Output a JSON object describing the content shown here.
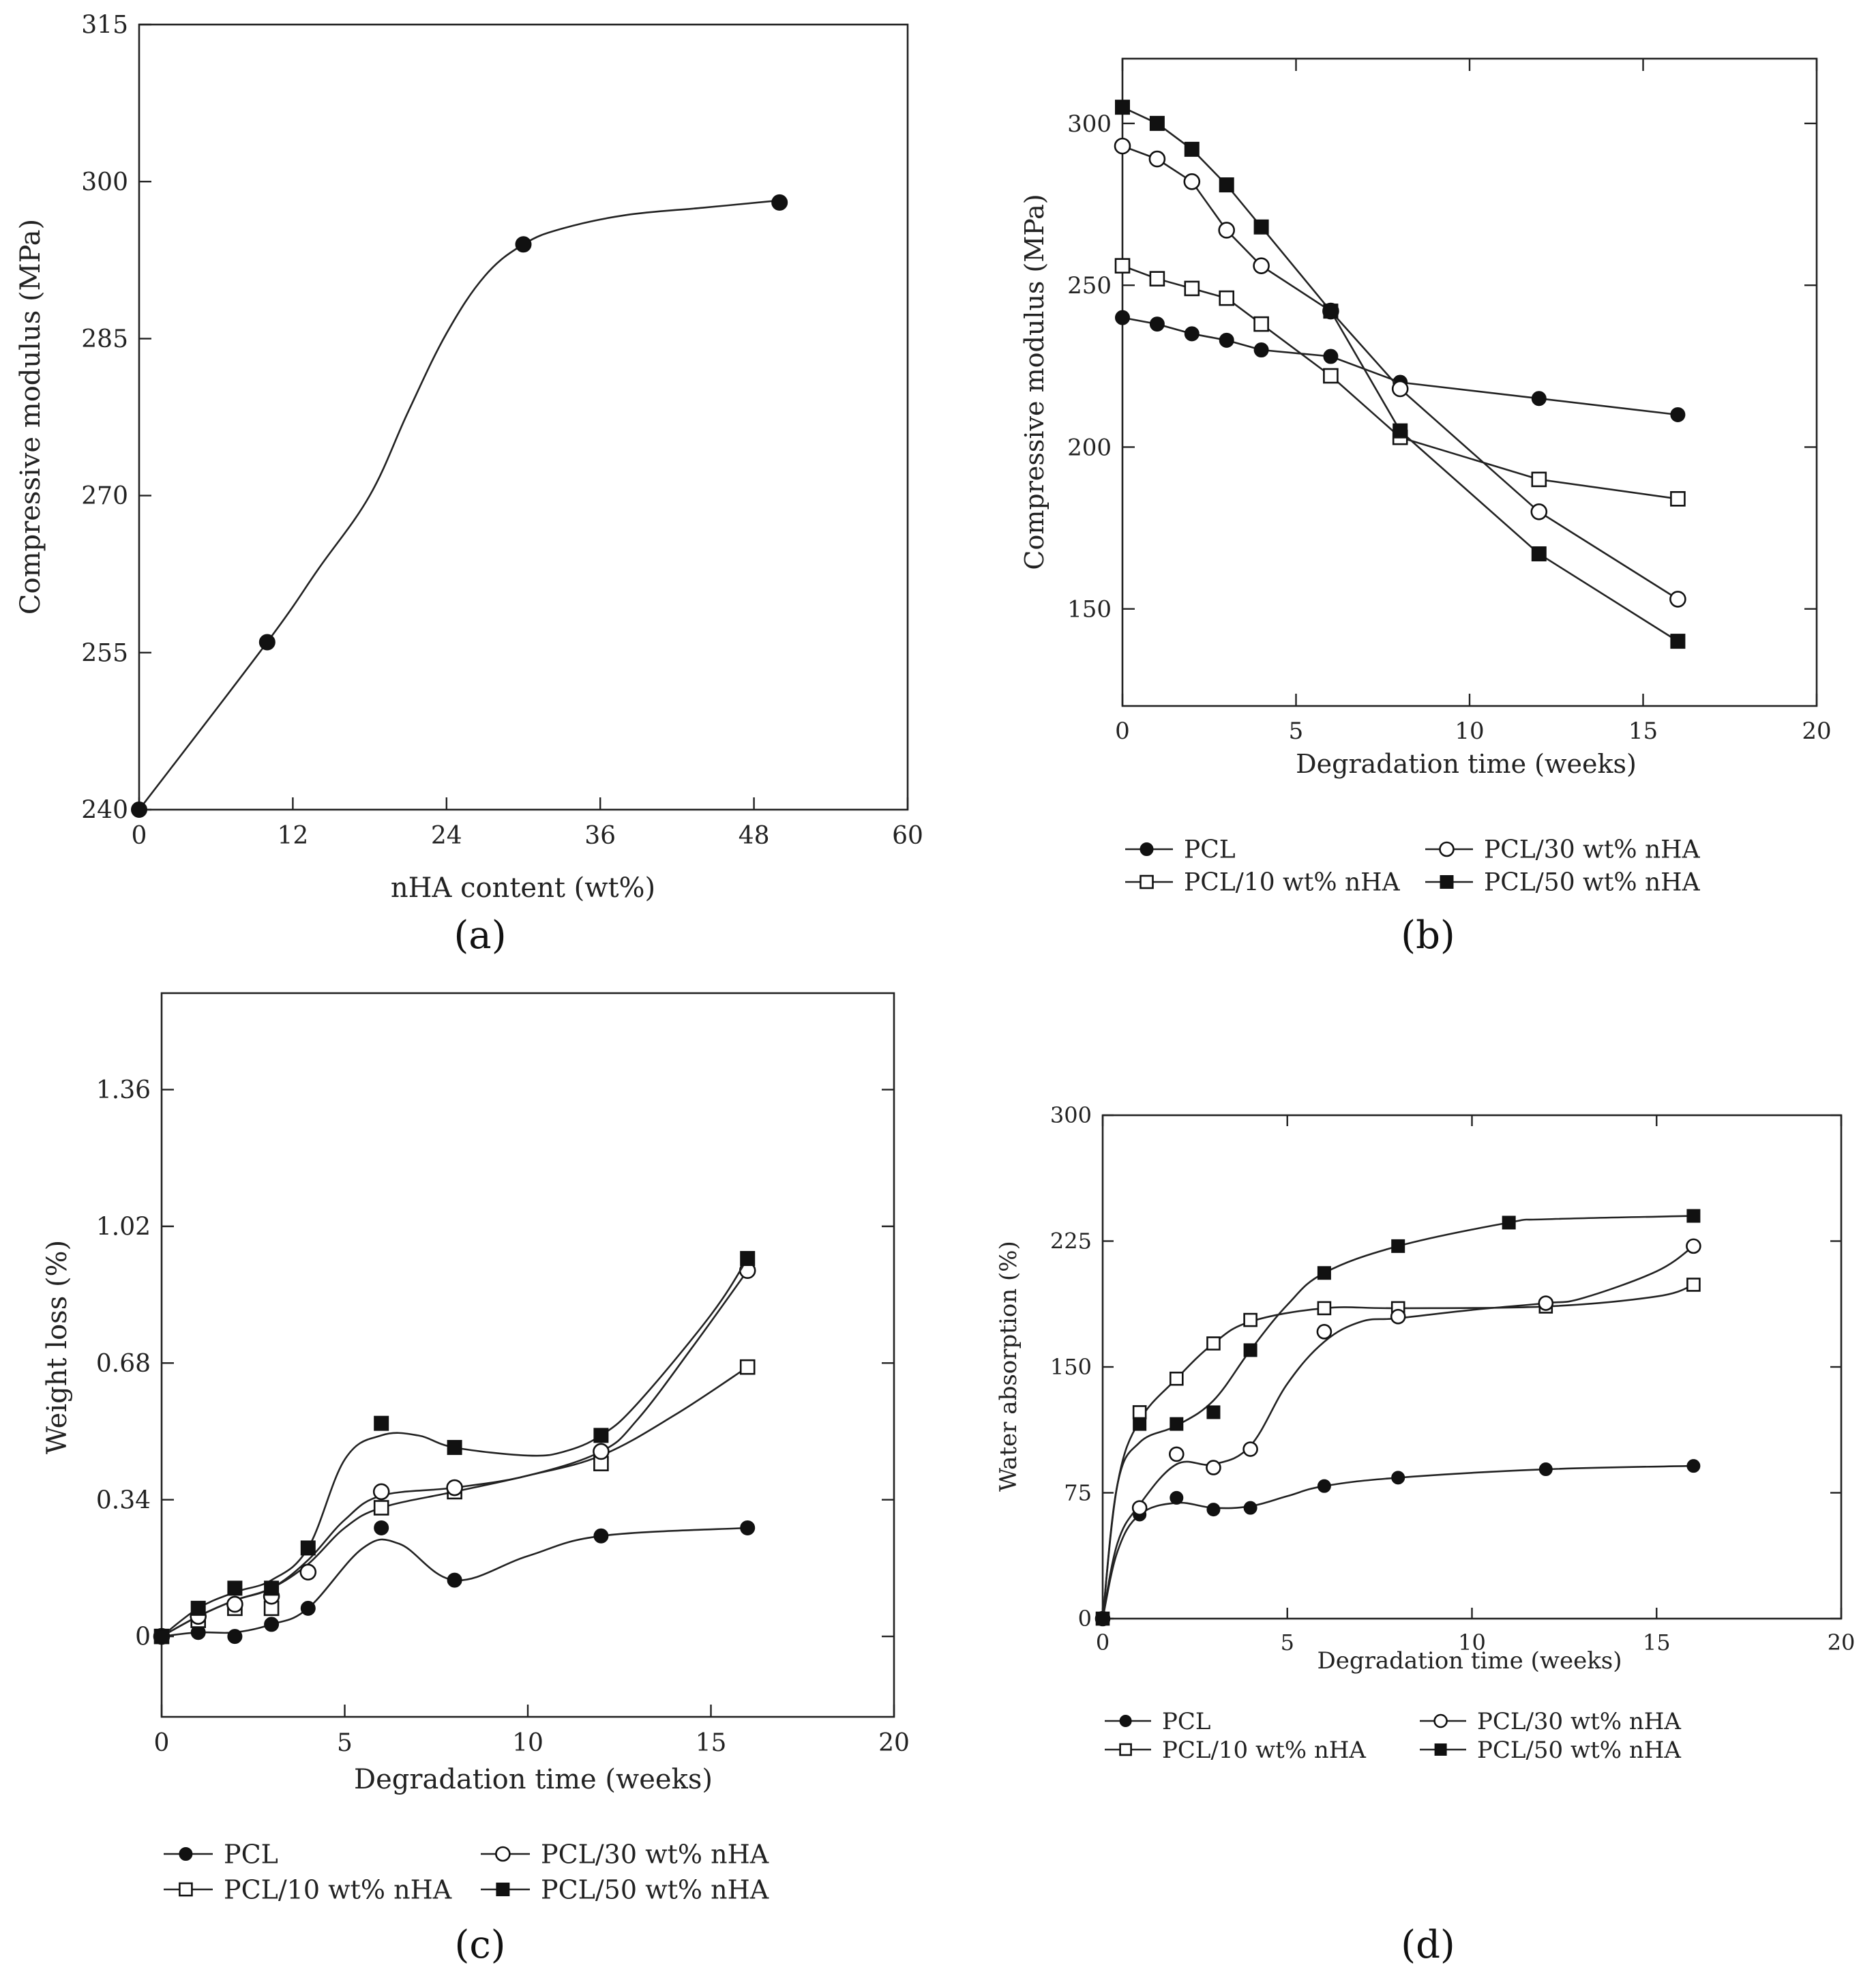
{
  "chart_data": [
    {
      "id": "a",
      "type": "line",
      "caption": "(a)",
      "xlabel": "nHA content (wt%)",
      "ylabel": "Compressive modulus (MPa)",
      "xlim": [
        0,
        60
      ],
      "ylim": [
        240,
        315
      ],
      "xticks": [
        0,
        12,
        24,
        36,
        48,
        60
      ],
      "yticks": [
        240,
        255,
        270,
        285,
        300,
        315
      ],
      "series": [
        {
          "name": "Compressive modulus",
          "marker": "filled-circle",
          "x": [
            0,
            10,
            30,
            50
          ],
          "y": [
            240,
            256,
            294,
            298
          ],
          "curve_x": [
            0,
            10,
            14,
            18,
            21,
            24,
            27,
            30,
            33,
            38,
            44,
            50
          ],
          "curve_y": [
            240,
            256,
            263,
            270,
            278,
            285.5,
            291,
            294,
            295.5,
            296.8,
            297.5,
            298.2
          ]
        }
      ]
    },
    {
      "id": "b",
      "type": "line",
      "caption": "(b)",
      "xlabel": "Degradation time (weeks)",
      "ylabel": "Compressive modulus (MPa)",
      "xlim": [
        0,
        20
      ],
      "ylim": [
        120,
        320
      ],
      "xticks": [
        0,
        5,
        10,
        15,
        20
      ],
      "yticks": [
        150,
        200,
        250,
        300
      ],
      "legend": {
        "placement": "bottom",
        "entries": [
          "PCL",
          "PCL/10 wt% nHA",
          "PCL/30 wt% nHA",
          "PCL/50 wt% nHA"
        ]
      },
      "series": [
        {
          "name": "PCL",
          "marker": "filled-circle",
          "x": [
            0,
            1,
            2,
            3,
            4,
            6,
            8,
            12,
            16
          ],
          "y": [
            240,
            238,
            235,
            233,
            230,
            228,
            220,
            215,
            210
          ]
        },
        {
          "name": "PCL/10 wt% nHA",
          "marker": "open-square",
          "x": [
            0,
            1,
            2,
            3,
            4,
            6,
            8,
            12,
            16
          ],
          "y": [
            256,
            252,
            249,
            246,
            238,
            222,
            203,
            190,
            184
          ]
        },
        {
          "name": "PCL/30 wt% nHA",
          "marker": "open-circle",
          "x": [
            0,
            1,
            2,
            3,
            4,
            6,
            8,
            12,
            16
          ],
          "y": [
            293,
            289,
            282,
            267,
            256,
            242,
            218,
            180,
            153
          ]
        },
        {
          "name": "PCL/50 wt% nHA",
          "marker": "filled-square",
          "x": [
            0,
            1,
            2,
            3,
            4,
            6,
            8,
            12,
            16
          ],
          "y": [
            305,
            300,
            292,
            281,
            268,
            242,
            205,
            167,
            140
          ]
        }
      ]
    },
    {
      "id": "c",
      "type": "line",
      "caption": "(c)",
      "xlabel": "Degradation time (weeks)",
      "ylabel": "Weight loss (%)",
      "xlim": [
        0,
        20
      ],
      "ylim": [
        -0.2,
        1.6
      ],
      "xticks": [
        0,
        5,
        10,
        15,
        20
      ],
      "yticks": [
        0,
        0.34,
        0.68,
        1.02,
        1.36
      ],
      "ytick_labels": [
        "0",
        "0.34",
        "0.68",
        "1.02",
        "1.36"
      ],
      "legend": {
        "placement": "bottom",
        "entries": [
          "PCL",
          "PCL/10 wt% nHA",
          "PCL/30 wt% nHA",
          "PCL/50 wt% nHA"
        ]
      },
      "series": [
        {
          "name": "PCL",
          "marker": "filled-circle",
          "x": [
            0,
            1,
            2,
            3,
            4,
            6,
            8,
            12,
            16
          ],
          "y": [
            0,
            0.01,
            0,
            0.03,
            0.07,
            0.27,
            0.14,
            0.25,
            0.27
          ],
          "curve_x": [
            0,
            1,
            2,
            3,
            4,
            5.5,
            6.5,
            8,
            10,
            12,
            16
          ],
          "curve_y": [
            0,
            0.01,
            0.01,
            0.03,
            0.07,
            0.22,
            0.23,
            0.14,
            0.2,
            0.25,
            0.27
          ]
        },
        {
          "name": "PCL/10 wt% nHA",
          "marker": "open-square",
          "x": [
            0,
            1,
            2,
            3,
            6,
            8,
            12,
            16
          ],
          "y": [
            0,
            0.04,
            0.07,
            0.07,
            0.32,
            0.36,
            0.43,
            0.67
          ],
          "curve_x": [
            0,
            1,
            2,
            3,
            4,
            5,
            6,
            8,
            10,
            12,
            14,
            16
          ],
          "curve_y": [
            0,
            0.05,
            0.09,
            0.12,
            0.18,
            0.27,
            0.32,
            0.36,
            0.4,
            0.45,
            0.55,
            0.67
          ]
        },
        {
          "name": "PCL/30 wt% nHA",
          "marker": "open-circle",
          "x": [
            0,
            1,
            2,
            3,
            4,
            6,
            8,
            12,
            16
          ],
          "y": [
            0,
            0.05,
            0.08,
            0.1,
            0.16,
            0.36,
            0.37,
            0.46,
            0.91
          ],
          "curve_x": [
            0,
            1,
            2,
            3,
            4,
            5,
            6,
            8,
            10,
            12,
            13,
            14.5,
            16
          ],
          "curve_y": [
            0,
            0.05,
            0.09,
            0.12,
            0.19,
            0.29,
            0.35,
            0.37,
            0.4,
            0.46,
            0.54,
            0.72,
            0.91
          ]
        },
        {
          "name": "PCL/50 wt% nHA",
          "marker": "filled-square",
          "x": [
            0,
            1,
            2,
            3,
            4,
            6,
            8,
            12,
            16
          ],
          "y": [
            0,
            0.07,
            0.12,
            0.12,
            0.22,
            0.53,
            0.47,
            0.5,
            0.94
          ],
          "curve_x": [
            0,
            1,
            2,
            3,
            4,
            5,
            6,
            7,
            8,
            10,
            11,
            12,
            13,
            15,
            16
          ],
          "curve_y": [
            0,
            0.07,
            0.11,
            0.14,
            0.22,
            0.44,
            0.5,
            0.5,
            0.47,
            0.45,
            0.46,
            0.5,
            0.58,
            0.8,
            0.94
          ]
        }
      ]
    },
    {
      "id": "d",
      "type": "line",
      "caption": "(d)",
      "xlabel": "Degradation time (weeks)",
      "ylabel": "Water absorption (%)",
      "xlim": [
        0,
        20
      ],
      "ylim": [
        0,
        300
      ],
      "xticks": [
        0,
        5,
        10,
        15,
        20
      ],
      "yticks": [
        0,
        75,
        150,
        225,
        300
      ],
      "legend": {
        "placement": "bottom",
        "entries": [
          "PCL",
          "PCL/10 wt% nHA",
          "PCL/30 wt% nHA",
          "PCL/50 wt% nHA"
        ]
      },
      "series": [
        {
          "name": "PCL",
          "marker": "filled-circle",
          "x": [
            0,
            1,
            2,
            3,
            4,
            6,
            8,
            12,
            16
          ],
          "y": [
            0,
            62,
            72,
            65,
            66,
            79,
            84,
            89,
            91
          ],
          "curve_x": [
            0,
            0.4,
            1,
            2,
            3,
            4,
            5,
            6,
            8,
            12,
            16
          ],
          "curve_y": [
            0,
            40,
            62,
            69,
            66,
            67,
            73,
            79,
            84,
            89,
            91
          ]
        },
        {
          "name": "PCL/10 wt% nHA",
          "marker": "open-square",
          "x": [
            0,
            1,
            2,
            3,
            4,
            6,
            8,
            12,
            16
          ],
          "y": [
            0,
            123,
            143,
            164,
            178,
            185,
            185,
            186,
            199
          ],
          "curve_x": [
            0,
            0.4,
            1,
            2,
            3,
            4,
            6,
            8,
            12,
            15,
            16
          ],
          "curve_y": [
            0,
            80,
            118,
            143,
            164,
            177,
            185,
            185,
            186,
            192,
            199
          ]
        },
        {
          "name": "PCL/30 wt% nHA",
          "marker": "open-circle",
          "x": [
            0,
            1,
            2,
            3,
            4,
            6,
            8,
            12,
            16
          ],
          "y": [
            0,
            66,
            98,
            90,
            101,
            171,
            180,
            188,
            222
          ],
          "curve_x": [
            0,
            0.4,
            1,
            2,
            3,
            4,
            5,
            6,
            7,
            8,
            10,
            12,
            13,
            15,
            16
          ],
          "curve_y": [
            0,
            45,
            68,
            92,
            92,
            103,
            140,
            165,
            177,
            179,
            184,
            188,
            191,
            207,
            222
          ]
        },
        {
          "name": "PCL/50 wt% nHA",
          "marker": "filled-square",
          "x": [
            0,
            1,
            2,
            3,
            4,
            6,
            8,
            11,
            16
          ],
          "y": [
            0,
            116,
            116,
            123,
            160,
            206,
            222,
            236,
            240
          ],
          "curve_x": [
            0,
            0.4,
            1,
            2,
            3,
            4,
            5,
            6,
            8,
            11,
            12,
            16
          ],
          "curve_y": [
            0,
            80,
            105,
            115,
            130,
            160,
            187,
            206,
            222,
            236,
            238,
            240
          ]
        }
      ]
    }
  ]
}
